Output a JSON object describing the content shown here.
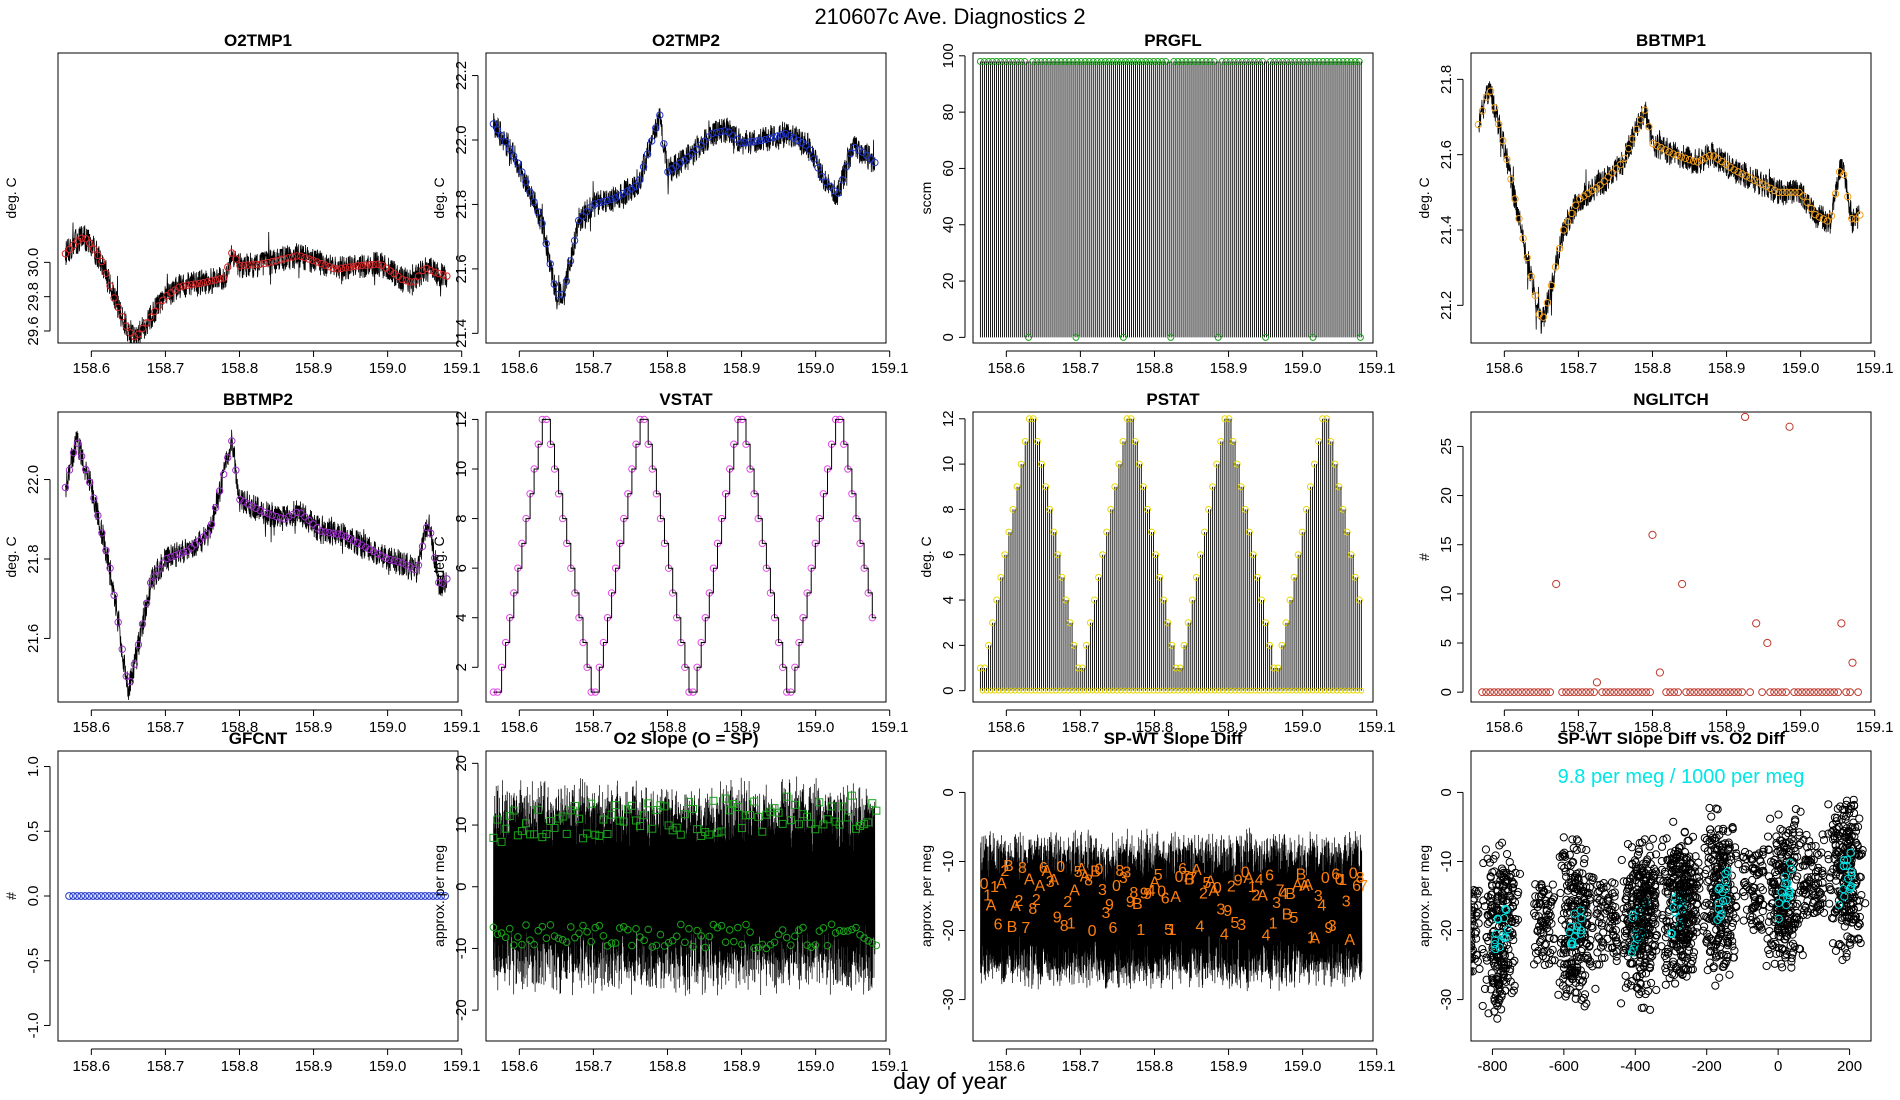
{
  "figure": {
    "title": "210607c   Ave. Diagnostics 2",
    "xlabel": "day of year"
  },
  "colors": {
    "red": "#d62728",
    "blue": "#1f35c9",
    "green": "#1aa31a",
    "orange": "#f5a11d",
    "purple": "#9b30c8",
    "magenta": "#e24be6",
    "yellow": "#e6d800",
    "brick": "#c0392b",
    "dark_orange": "#ff7f0e",
    "cyan": "#00e5e5",
    "black": "#000000"
  },
  "chart_data": [
    {
      "id": "o2tmp1",
      "type": "line",
      "title": "O2TMP1",
      "ylabel": "deg. C",
      "xlim": [
        158.555,
        159.095
      ],
      "ylim": [
        29.53,
        31.22
      ],
      "xticks": [
        "158.6",
        "158.7",
        "158.8",
        "158.9",
        "159.0",
        "159.1"
      ],
      "yticks": [
        "29.6",
        "29.8",
        "30.0"
      ],
      "x": [
        158.565,
        158.58,
        158.59,
        158.6,
        158.615,
        158.63,
        158.65,
        158.66,
        158.68,
        158.7,
        158.72,
        158.75,
        158.78,
        158.79,
        158.8,
        158.83,
        158.86,
        158.88,
        158.9,
        158.93,
        158.96,
        158.99,
        159.0,
        159.02,
        159.035,
        159.05,
        159.065,
        159.08
      ],
      "y": [
        30.05,
        30.12,
        30.15,
        30.1,
        30.0,
        29.8,
        29.6,
        29.56,
        29.68,
        29.8,
        29.86,
        29.88,
        29.91,
        30.06,
        29.98,
        29.99,
        30.02,
        30.04,
        30.01,
        29.96,
        29.98,
        29.99,
        29.96,
        29.9,
        29.88,
        29.97,
        29.94,
        29.92
      ],
      "marker_color": "red",
      "marker": "circle"
    },
    {
      "id": "o2tmp2",
      "type": "line",
      "title": "O2TMP2",
      "ylabel": "deg. C",
      "xlim": [
        158.555,
        159.095
      ],
      "ylim": [
        21.37,
        22.27
      ],
      "xticks": [
        "158.6",
        "158.7",
        "158.8",
        "158.9",
        "159.0",
        "159.1"
      ],
      "yticks": [
        "21.4",
        "21.6",
        "21.8",
        "22.0",
        "22.2"
      ],
      "x": [
        158.565,
        158.58,
        158.6,
        158.63,
        158.65,
        158.66,
        158.68,
        158.7,
        158.73,
        158.76,
        158.79,
        158.8,
        158.83,
        158.86,
        158.88,
        158.9,
        158.93,
        158.96,
        158.99,
        159.01,
        159.03,
        159.05,
        159.065,
        159.08
      ],
      "y": [
        22.05,
        22.0,
        21.92,
        21.75,
        21.52,
        21.52,
        21.75,
        21.8,
        21.82,
        21.86,
        22.08,
        21.9,
        21.95,
        22.02,
        22.03,
        21.99,
        22.0,
        22.02,
        21.98,
        21.88,
        21.83,
        21.98,
        21.96,
        21.93
      ],
      "marker_color": "blue",
      "marker": "circle"
    },
    {
      "id": "prgfl",
      "type": "spikes",
      "title": "PRGFL",
      "ylabel": "sccm",
      "xlim": [
        158.555,
        159.095
      ],
      "ylim": [
        -2,
        101
      ],
      "xticks": [
        "158.6",
        "158.7",
        "158.8",
        "158.9",
        "159.0",
        "159.1"
      ],
      "yticks": [
        "0",
        "20",
        "40",
        "60",
        "80",
        "100"
      ],
      "high_value": 98,
      "low_value": 0,
      "low_x": [
        158.63,
        158.694,
        158.758,
        158.822,
        158.886,
        158.95,
        159.014,
        159.078
      ],
      "marker_color": "green",
      "marker": "circle"
    },
    {
      "id": "bbtmp1",
      "type": "line",
      "title": "BBTMP1",
      "ylabel": "deg. C",
      "xlim": [
        158.555,
        159.095
      ],
      "ylim": [
        21.1,
        21.87
      ],
      "xticks": [
        "158.6",
        "158.7",
        "158.8",
        "158.9",
        "159.0",
        "159.1"
      ],
      "yticks": [
        "21.2",
        "21.4",
        "21.6",
        "21.8"
      ],
      "x": [
        158.565,
        158.58,
        158.6,
        158.625,
        158.65,
        158.66,
        158.68,
        158.7,
        158.73,
        158.76,
        158.79,
        158.8,
        158.83,
        158.86,
        158.88,
        158.91,
        158.94,
        158.97,
        159.0,
        159.02,
        159.04,
        159.055,
        159.07,
        159.08
      ],
      "y": [
        21.68,
        21.78,
        21.62,
        21.38,
        21.15,
        21.22,
        21.4,
        21.48,
        21.52,
        21.58,
        21.72,
        21.63,
        21.6,
        21.58,
        21.6,
        21.56,
        21.53,
        21.5,
        21.5,
        21.44,
        21.42,
        21.58,
        21.42,
        21.44
      ],
      "marker_color": "orange",
      "marker": "circle"
    },
    {
      "id": "bbtmp2",
      "type": "line",
      "title": "BBTMP2",
      "ylabel": "deg. C",
      "xlim": [
        158.555,
        159.095
      ],
      "ylim": [
        21.44,
        22.17
      ],
      "xticks": [
        "158.6",
        "158.7",
        "158.8",
        "158.9",
        "159.0",
        "159.1"
      ],
      "yticks": [
        "21.6",
        "21.8",
        "22.0"
      ],
      "x": [
        158.565,
        158.58,
        158.6,
        158.625,
        158.65,
        158.66,
        158.68,
        158.7,
        158.73,
        158.76,
        158.79,
        158.8,
        158.83,
        158.86,
        158.88,
        158.91,
        158.94,
        158.97,
        159.0,
        159.02,
        159.04,
        159.055,
        159.07,
        159.08
      ],
      "y": [
        21.98,
        22.1,
        21.98,
        21.78,
        21.47,
        21.55,
        21.74,
        21.8,
        21.82,
        21.87,
        22.1,
        21.95,
        21.92,
        21.9,
        21.92,
        21.87,
        21.86,
        21.83,
        21.8,
        21.79,
        21.77,
        21.9,
        21.73,
        21.75
      ],
      "marker_color": "purple",
      "marker": "circle"
    },
    {
      "id": "vstat",
      "type": "step",
      "title": "VSTAT",
      "ylabel": "deg. C",
      "xlim": [
        158.555,
        159.095
      ],
      "ylim": [
        0.6,
        12.3
      ],
      "xticks": [
        "158.6",
        "158.7",
        "158.8",
        "158.9",
        "159.0",
        "159.1"
      ],
      "yticks": [
        "2",
        "4",
        "6",
        "8",
        "10",
        "12"
      ],
      "x_start": 158.565,
      "x_step": 0.0055,
      "pattern": [
        1,
        1,
        2,
        3,
        4,
        5,
        6,
        7,
        8,
        9,
        10,
        11,
        12,
        12,
        11,
        10,
        9,
        8,
        7,
        6,
        5,
        4,
        3,
        2
      ],
      "count": 94,
      "marker_color": "magenta",
      "marker": "circle"
    },
    {
      "id": "pstat",
      "type": "spikes_pattern",
      "title": "PSTAT",
      "ylabel": "deg. C",
      "xlim": [
        158.555,
        159.095
      ],
      "ylim": [
        -0.5,
        12.3
      ],
      "xticks": [
        "158.6",
        "158.7",
        "158.8",
        "158.9",
        "159.0",
        "159.1"
      ],
      "yticks": [
        "0",
        "2",
        "4",
        "6",
        "8",
        "10",
        "12"
      ],
      "x_start": 158.565,
      "x_step": 0.00275,
      "pattern": [
        1,
        1,
        2,
        3,
        4,
        5,
        6,
        7,
        8,
        9,
        10,
        11,
        12,
        12,
        11,
        10,
        9,
        8,
        7,
        6,
        5,
        4,
        3,
        2
      ],
      "count": 188,
      "marker_color": "yellow",
      "marker": "circle"
    },
    {
      "id": "nglitch",
      "type": "scatter",
      "title": "NGLITCH",
      "ylabel": "#",
      "xlim": [
        158.555,
        159.095
      ],
      "ylim": [
        -1,
        28.5
      ],
      "xticks": [
        "158.6",
        "158.7",
        "158.8",
        "158.9",
        "159.0",
        "159.1"
      ],
      "yticks": [
        "0",
        "5",
        "10",
        "15",
        "20",
        "25"
      ],
      "baseline": 0,
      "x": [
        158.67,
        158.725,
        158.8,
        158.81,
        158.84,
        158.925,
        158.94,
        158.955,
        158.985,
        159.055,
        159.07
      ],
      "y": [
        11,
        1,
        16,
        2,
        11,
        28,
        7,
        5,
        27,
        7,
        3
      ],
      "marker_color": "brick",
      "marker": "circle"
    },
    {
      "id": "gfcnt",
      "type": "scatter",
      "title": "GFCNT",
      "ylabel": "#",
      "xlim": [
        158.555,
        159.095
      ],
      "ylim": [
        -1.12,
        1.12
      ],
      "xticks": [
        "158.6",
        "158.7",
        "158.8",
        "158.9",
        "159.0",
        "159.1"
      ],
      "yticks": [
        "-1.0",
        "-0.5",
        "0.0",
        "0.5",
        "1.0"
      ],
      "constant": 0,
      "marker_color": "blue",
      "marker": "circle"
    },
    {
      "id": "o2slope",
      "type": "noise",
      "title": "O2 Slope (O = SP)",
      "ylabel": "approx. per meg",
      "xlim": [
        158.555,
        159.095
      ],
      "ylim": [
        -25,
        22
      ],
      "xticks": [
        "158.6",
        "158.7",
        "158.8",
        "158.9",
        "159.0",
        "159.1"
      ],
      "yticks": [
        "-20",
        "-10",
        "0",
        "10",
        "20"
      ],
      "noise_center": 0,
      "noise_amplitude": 18,
      "upper_mean": 11,
      "lower_mean": -8,
      "upper_marker": "square",
      "lower_marker": "circle",
      "marker_color": "green"
    },
    {
      "id": "spwt",
      "type": "noise",
      "title": "SP-WT Slope Diff",
      "ylabel": "approx. per meg",
      "xlim": [
        158.555,
        159.095
      ],
      "ylim": [
        -36,
        6
      ],
      "xticks": [
        "158.6",
        "158.7",
        "158.8",
        "158.9",
        "159.0",
        "159.1"
      ],
      "yticks": [
        "-30",
        "-20",
        "-10",
        "0"
      ],
      "noise_center": -17,
      "noise_amplitude": 12,
      "labels": [
        "6",
        "A",
        "9",
        "3",
        "2",
        "B",
        "A",
        "5",
        "7",
        "4",
        "1",
        "8",
        "0"
      ],
      "label_color": "dark_orange"
    },
    {
      "id": "spwt_vs_o2",
      "type": "scatter_clusters",
      "title": "SP-WT Slope Diff vs. O2 Diff",
      "ylabel": "approx. per meg",
      "annotation": "9.8 per meg / 1000 per meg",
      "xlim": [
        -860,
        260
      ],
      "ylim": [
        -36,
        6
      ],
      "xticks": [
        "-800",
        "-600",
        "-400",
        "-200",
        "0",
        "200"
      ],
      "yticks": [
        "-30",
        "-20",
        "-10",
        "0"
      ],
      "cluster_x": [
        -775,
        -565,
        -390,
        -280,
        -160,
        20,
        190
      ],
      "cluster_y": [
        -20,
        -19,
        -19,
        -17,
        -15,
        -14,
        -12
      ],
      "marker_color": "black",
      "highlight_color": "cyan",
      "slope_per_1000": 9.8
    }
  ]
}
